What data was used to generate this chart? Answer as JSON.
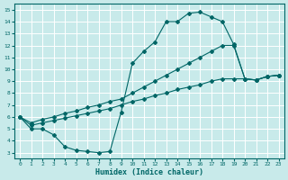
{
  "xlabel": "Humidex (Indice chaleur)",
  "bg_color": "#c8eaea",
  "grid_color": "#ffffff",
  "line_color": "#006666",
  "xlim": [
    -0.5,
    23.5
  ],
  "ylim": [
    2.5,
    15.5
  ],
  "xticks": [
    0,
    1,
    2,
    3,
    4,
    5,
    6,
    7,
    8,
    9,
    10,
    11,
    12,
    13,
    14,
    15,
    16,
    17,
    18,
    19,
    20,
    21,
    22,
    23
  ],
  "yticks": [
    3,
    4,
    5,
    6,
    7,
    8,
    9,
    10,
    11,
    12,
    13,
    14,
    15
  ],
  "line1_x": [
    0,
    1,
    2,
    3,
    4,
    5,
    6,
    7,
    8,
    9,
    10,
    11,
    12,
    13,
    14,
    15,
    16,
    17,
    18,
    19,
    20,
    21,
    22,
    23
  ],
  "line1_y": [
    6.0,
    5.0,
    5.0,
    4.5,
    3.5,
    3.2,
    3.1,
    3.0,
    3.1,
    6.4,
    10.5,
    11.5,
    12.3,
    14.0,
    14.0,
    14.7,
    14.8,
    14.4,
    14.0,
    12.1,
    9.2,
    9.1,
    9.4,
    9.5
  ],
  "line2_x": [
    0,
    1,
    2,
    3,
    4,
    5,
    6,
    7,
    8,
    9,
    10,
    11,
    12,
    13,
    14,
    15,
    16,
    17,
    18,
    19,
    20,
    21,
    22,
    23
  ],
  "line2_y": [
    6.0,
    5.5,
    5.8,
    6.0,
    6.3,
    6.5,
    6.8,
    7.0,
    7.3,
    7.5,
    8.0,
    8.5,
    9.0,
    9.5,
    10.0,
    10.5,
    11.0,
    11.5,
    12.0,
    12.0,
    9.2,
    9.1,
    9.4,
    9.5
  ],
  "line3_x": [
    0,
    1,
    2,
    3,
    4,
    5,
    6,
    7,
    8,
    9,
    10,
    11,
    12,
    13,
    14,
    15,
    16,
    17,
    18,
    19,
    20,
    21,
    22,
    23
  ],
  "line3_y": [
    6.0,
    5.3,
    5.5,
    5.7,
    5.9,
    6.1,
    6.3,
    6.5,
    6.7,
    7.0,
    7.3,
    7.5,
    7.8,
    8.0,
    8.3,
    8.5,
    8.7,
    9.0,
    9.2,
    9.2,
    9.2,
    9.1,
    9.4,
    9.5
  ]
}
